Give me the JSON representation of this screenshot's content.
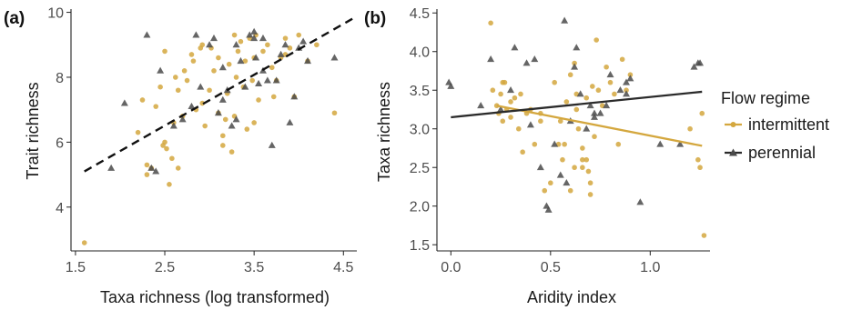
{
  "colors": {
    "intermittent": "#d4a73e",
    "perennial": "#4a4a4a",
    "axis": "#222222"
  },
  "legend": {
    "title": "Flow regime",
    "items": [
      {
        "label": "intermittent",
        "series": "intermittent"
      },
      {
        "label": "perennial",
        "series": "perennial"
      }
    ]
  },
  "chart_data": [
    {
      "panel": "(a)",
      "type": "scatter",
      "xlabel": "Taxa richness (log transformed)",
      "ylabel": "Trait richness",
      "xlim": [
        1.45,
        4.65
      ],
      "ylim": [
        2.65,
        10.1
      ],
      "xticks": [
        1.5,
        2.5,
        3.5,
        4.5
      ],
      "yticks": [
        4,
        6,
        8,
        10
      ],
      "grid": false,
      "trend": {
        "style": "dashed",
        "x": [
          1.6,
          4.6
        ],
        "y": [
          5.1,
          9.8
        ]
      },
      "series": [
        {
          "key": "intermittent",
          "points": [
            [
              1.6,
              2.9
            ],
            [
              2.2,
              6.3
            ],
            [
              2.25,
              7.3
            ],
            [
              2.3,
              5.0
            ],
            [
              2.35,
              5.2
            ],
            [
              2.4,
              7.1
            ],
            [
              2.45,
              7.7
            ],
            [
              2.5,
              8.8
            ],
            [
              2.5,
              6.0
            ],
            [
              2.52,
              5.8
            ],
            [
              2.55,
              4.7
            ],
            [
              2.58,
              5.5
            ],
            [
              2.6,
              6.6
            ],
            [
              2.62,
              8.0
            ],
            [
              2.65,
              7.6
            ],
            [
              2.7,
              6.8
            ],
            [
              2.72,
              8.2
            ],
            [
              2.75,
              7.9
            ],
            [
              2.8,
              8.7
            ],
            [
              2.82,
              8.5
            ],
            [
              2.85,
              7.0
            ],
            [
              2.9,
              8.9
            ],
            [
              2.92,
              9.0
            ],
            [
              2.95,
              6.5
            ],
            [
              3.0,
              7.6
            ],
            [
              3.05,
              8.2
            ],
            [
              3.1,
              6.9
            ],
            [
              3.1,
              8.6
            ],
            [
              3.15,
              5.9
            ],
            [
              3.18,
              6.7
            ],
            [
              3.2,
              7.5
            ],
            [
              3.22,
              8.4
            ],
            [
              3.25,
              5.7
            ],
            [
              3.28,
              6.8
            ],
            [
              3.3,
              8.0
            ],
            [
              3.32,
              8.8
            ],
            [
              3.35,
              9.1
            ],
            [
              3.38,
              7.7
            ],
            [
              3.4,
              8.5
            ],
            [
              3.42,
              6.4
            ],
            [
              3.45,
              9.2
            ],
            [
              3.48,
              7.9
            ],
            [
              3.5,
              8.6
            ],
            [
              3.52,
              9.3
            ],
            [
              3.55,
              7.3
            ],
            [
              3.6,
              8.8
            ],
            [
              3.65,
              9.0
            ],
            [
              3.7,
              8.3
            ],
            [
              3.75,
              7.9
            ],
            [
              3.8,
              8.6
            ],
            [
              3.85,
              9.2
            ],
            [
              3.9,
              8.9
            ],
            [
              3.95,
              7.4
            ],
            [
              4.0,
              9.3
            ],
            [
              4.1,
              8.5
            ],
            [
              4.2,
              9.0
            ],
            [
              4.4,
              6.9
            ],
            [
              2.3,
              5.3
            ],
            [
              2.65,
              5.2
            ],
            [
              2.48,
              5.9
            ],
            [
              3.02,
              8.9
            ],
            [
              3.15,
              6.2
            ],
            [
              3.5,
              6.6
            ],
            [
              3.28,
              9.3
            ],
            [
              2.92,
              7.2
            ],
            [
              3.72,
              7.4
            ],
            [
              3.85,
              8.7
            ]
          ]
        },
        {
          "key": "perennial",
          "points": [
            [
              1.9,
              5.2
            ],
            [
              2.05,
              7.2
            ],
            [
              2.35,
              5.2
            ],
            [
              2.4,
              5.1
            ],
            [
              2.45,
              8.2
            ],
            [
              2.6,
              6.5
            ],
            [
              2.7,
              6.7
            ],
            [
              2.8,
              7.1
            ],
            [
              2.9,
              7.7
            ],
            [
              3.0,
              9.0
            ],
            [
              3.05,
              9.2
            ],
            [
              3.1,
              6.9
            ],
            [
              3.15,
              8.3
            ],
            [
              3.2,
              7.6
            ],
            [
              3.25,
              6.5
            ],
            [
              3.3,
              6.7
            ],
            [
              3.35,
              8.5
            ],
            [
              3.4,
              7.7
            ],
            [
              3.45,
              9.3
            ],
            [
              3.5,
              9.4
            ],
            [
              3.52,
              8.6
            ],
            [
              3.55,
              7.8
            ],
            [
              3.6,
              9.2
            ],
            [
              3.65,
              7.9
            ],
            [
              3.7,
              5.9
            ],
            [
              3.75,
              7.9
            ],
            [
              3.8,
              8.7
            ],
            [
              3.85,
              9.0
            ],
            [
              3.9,
              6.6
            ],
            [
              3.95,
              7.4
            ],
            [
              4.0,
              8.9
            ],
            [
              4.05,
              9.1
            ],
            [
              4.1,
              8.5
            ],
            [
              4.4,
              8.6
            ],
            [
              2.3,
              9.3
            ],
            [
              2.85,
              9.3
            ],
            [
              3.3,
              9.0
            ],
            [
              3.15,
              7.3
            ],
            [
              3.6,
              8.2
            ],
            [
              3.5,
              9.2
            ]
          ]
        }
      ]
    },
    {
      "panel": "(b)",
      "type": "scatter",
      "xlabel": "Aridity index",
      "ylabel": "Taxa richness",
      "xlim": [
        -0.07,
        1.3
      ],
      "ylim": [
        1.42,
        4.55
      ],
      "xticks": [
        0.0,
        0.5,
        1.0
      ],
      "yticks": [
        1.5,
        2.0,
        2.5,
        3.0,
        3.5,
        4.0,
        4.5
      ],
      "grid": false,
      "trends": [
        {
          "series": "intermittent",
          "x": [
            0.23,
            1.26
          ],
          "y": [
            3.3,
            2.78
          ]
        },
        {
          "series": "perennial",
          "x": [
            0.0,
            1.26
          ],
          "y": [
            3.15,
            3.48
          ]
        }
      ],
      "series": [
        {
          "key": "intermittent",
          "points": [
            [
              0.2,
              4.37
            ],
            [
              0.21,
              3.5
            ],
            [
              0.23,
              3.3
            ],
            [
              0.24,
              3.2
            ],
            [
              0.25,
              3.45
            ],
            [
              0.26,
              3.1
            ],
            [
              0.27,
              3.6
            ],
            [
              0.28,
              3.25
            ],
            [
              0.3,
              3.35
            ],
            [
              0.32,
              3.4
            ],
            [
              0.34,
              3.0
            ],
            [
              0.36,
              2.7
            ],
            [
              0.38,
              3.2
            ],
            [
              0.4,
              3.25
            ],
            [
              0.42,
              2.8
            ],
            [
              0.45,
              3.1
            ],
            [
              0.47,
              2.2
            ],
            [
              0.5,
              2.3
            ],
            [
              0.52,
              3.6
            ],
            [
              0.54,
              2.8
            ],
            [
              0.56,
              2.6
            ],
            [
              0.58,
              3.35
            ],
            [
              0.6,
              3.7
            ],
            [
              0.62,
              2.5
            ],
            [
              0.64,
              3.0
            ],
            [
              0.66,
              2.6
            ],
            [
              0.68,
              3.4
            ],
            [
              0.7,
              2.3
            ],
            [
              0.72,
              2.9
            ],
            [
              0.74,
              3.5
            ],
            [
              0.76,
              3.3
            ],
            [
              0.78,
              3.8
            ],
            [
              0.8,
              3.6
            ],
            [
              0.84,
              2.8
            ],
            [
              0.86,
              3.9
            ],
            [
              0.88,
              3.5
            ],
            [
              0.9,
              3.7
            ],
            [
              1.2,
              3.0
            ],
            [
              1.25,
              2.5
            ],
            [
              1.26,
              3.2
            ],
            [
              1.27,
              1.62
            ],
            [
              0.57,
              2.8
            ],
            [
              0.63,
              3.25
            ],
            [
              0.68,
              2.6
            ],
            [
              0.55,
              3.1
            ],
            [
              0.71,
              3.55
            ],
            [
              0.73,
              4.15
            ],
            [
              0.66,
              2.5
            ],
            [
              0.62,
              3.85
            ],
            [
              0.45,
              3.2
            ],
            [
              0.6,
              2.2
            ],
            [
              0.66,
              2.75
            ],
            [
              0.69,
              2.45
            ],
            [
              0.82,
              3.45
            ],
            [
              0.3,
              3.15
            ],
            [
              0.35,
              3.45
            ],
            [
              0.26,
              3.6
            ],
            [
              1.24,
              2.6
            ],
            [
              0.63,
              3.45
            ],
            [
              0.7,
              2.15
            ]
          ]
        },
        {
          "key": "perennial",
          "points": [
            [
              -0.01,
              3.6
            ],
            [
              0.0,
              3.55
            ],
            [
              0.15,
              3.3
            ],
            [
              0.2,
              3.9
            ],
            [
              0.25,
              3.25
            ],
            [
              0.3,
              3.5
            ],
            [
              0.32,
              4.05
            ],
            [
              0.38,
              3.85
            ],
            [
              0.4,
              3.05
            ],
            [
              0.42,
              3.9
            ],
            [
              0.45,
              2.5
            ],
            [
              0.48,
              2.0
            ],
            [
              0.49,
              1.95
            ],
            [
              0.52,
              2.8
            ],
            [
              0.55,
              2.4
            ],
            [
              0.57,
              4.4
            ],
            [
              0.6,
              3.1
            ],
            [
              0.62,
              3.8
            ],
            [
              0.65,
              3.45
            ],
            [
              0.68,
              3.0
            ],
            [
              0.7,
              3.3
            ],
            [
              0.72,
              3.15
            ],
            [
              0.75,
              3.2
            ],
            [
              0.78,
              3.3
            ],
            [
              0.8,
              3.7
            ],
            [
              0.85,
              3.5
            ],
            [
              0.88,
              3.45
            ],
            [
              0.9,
              3.65
            ],
            [
              0.95,
              2.05
            ],
            [
              1.05,
              2.8
            ],
            [
              1.15,
              2.8
            ],
            [
              1.22,
              3.8
            ],
            [
              1.24,
              3.85
            ],
            [
              1.25,
              3.85
            ],
            [
              0.58,
              2.3
            ],
            [
              0.72,
              3.2
            ],
            [
              0.63,
              4.05
            ],
            [
              0.88,
              3.6
            ]
          ]
        }
      ]
    }
  ]
}
